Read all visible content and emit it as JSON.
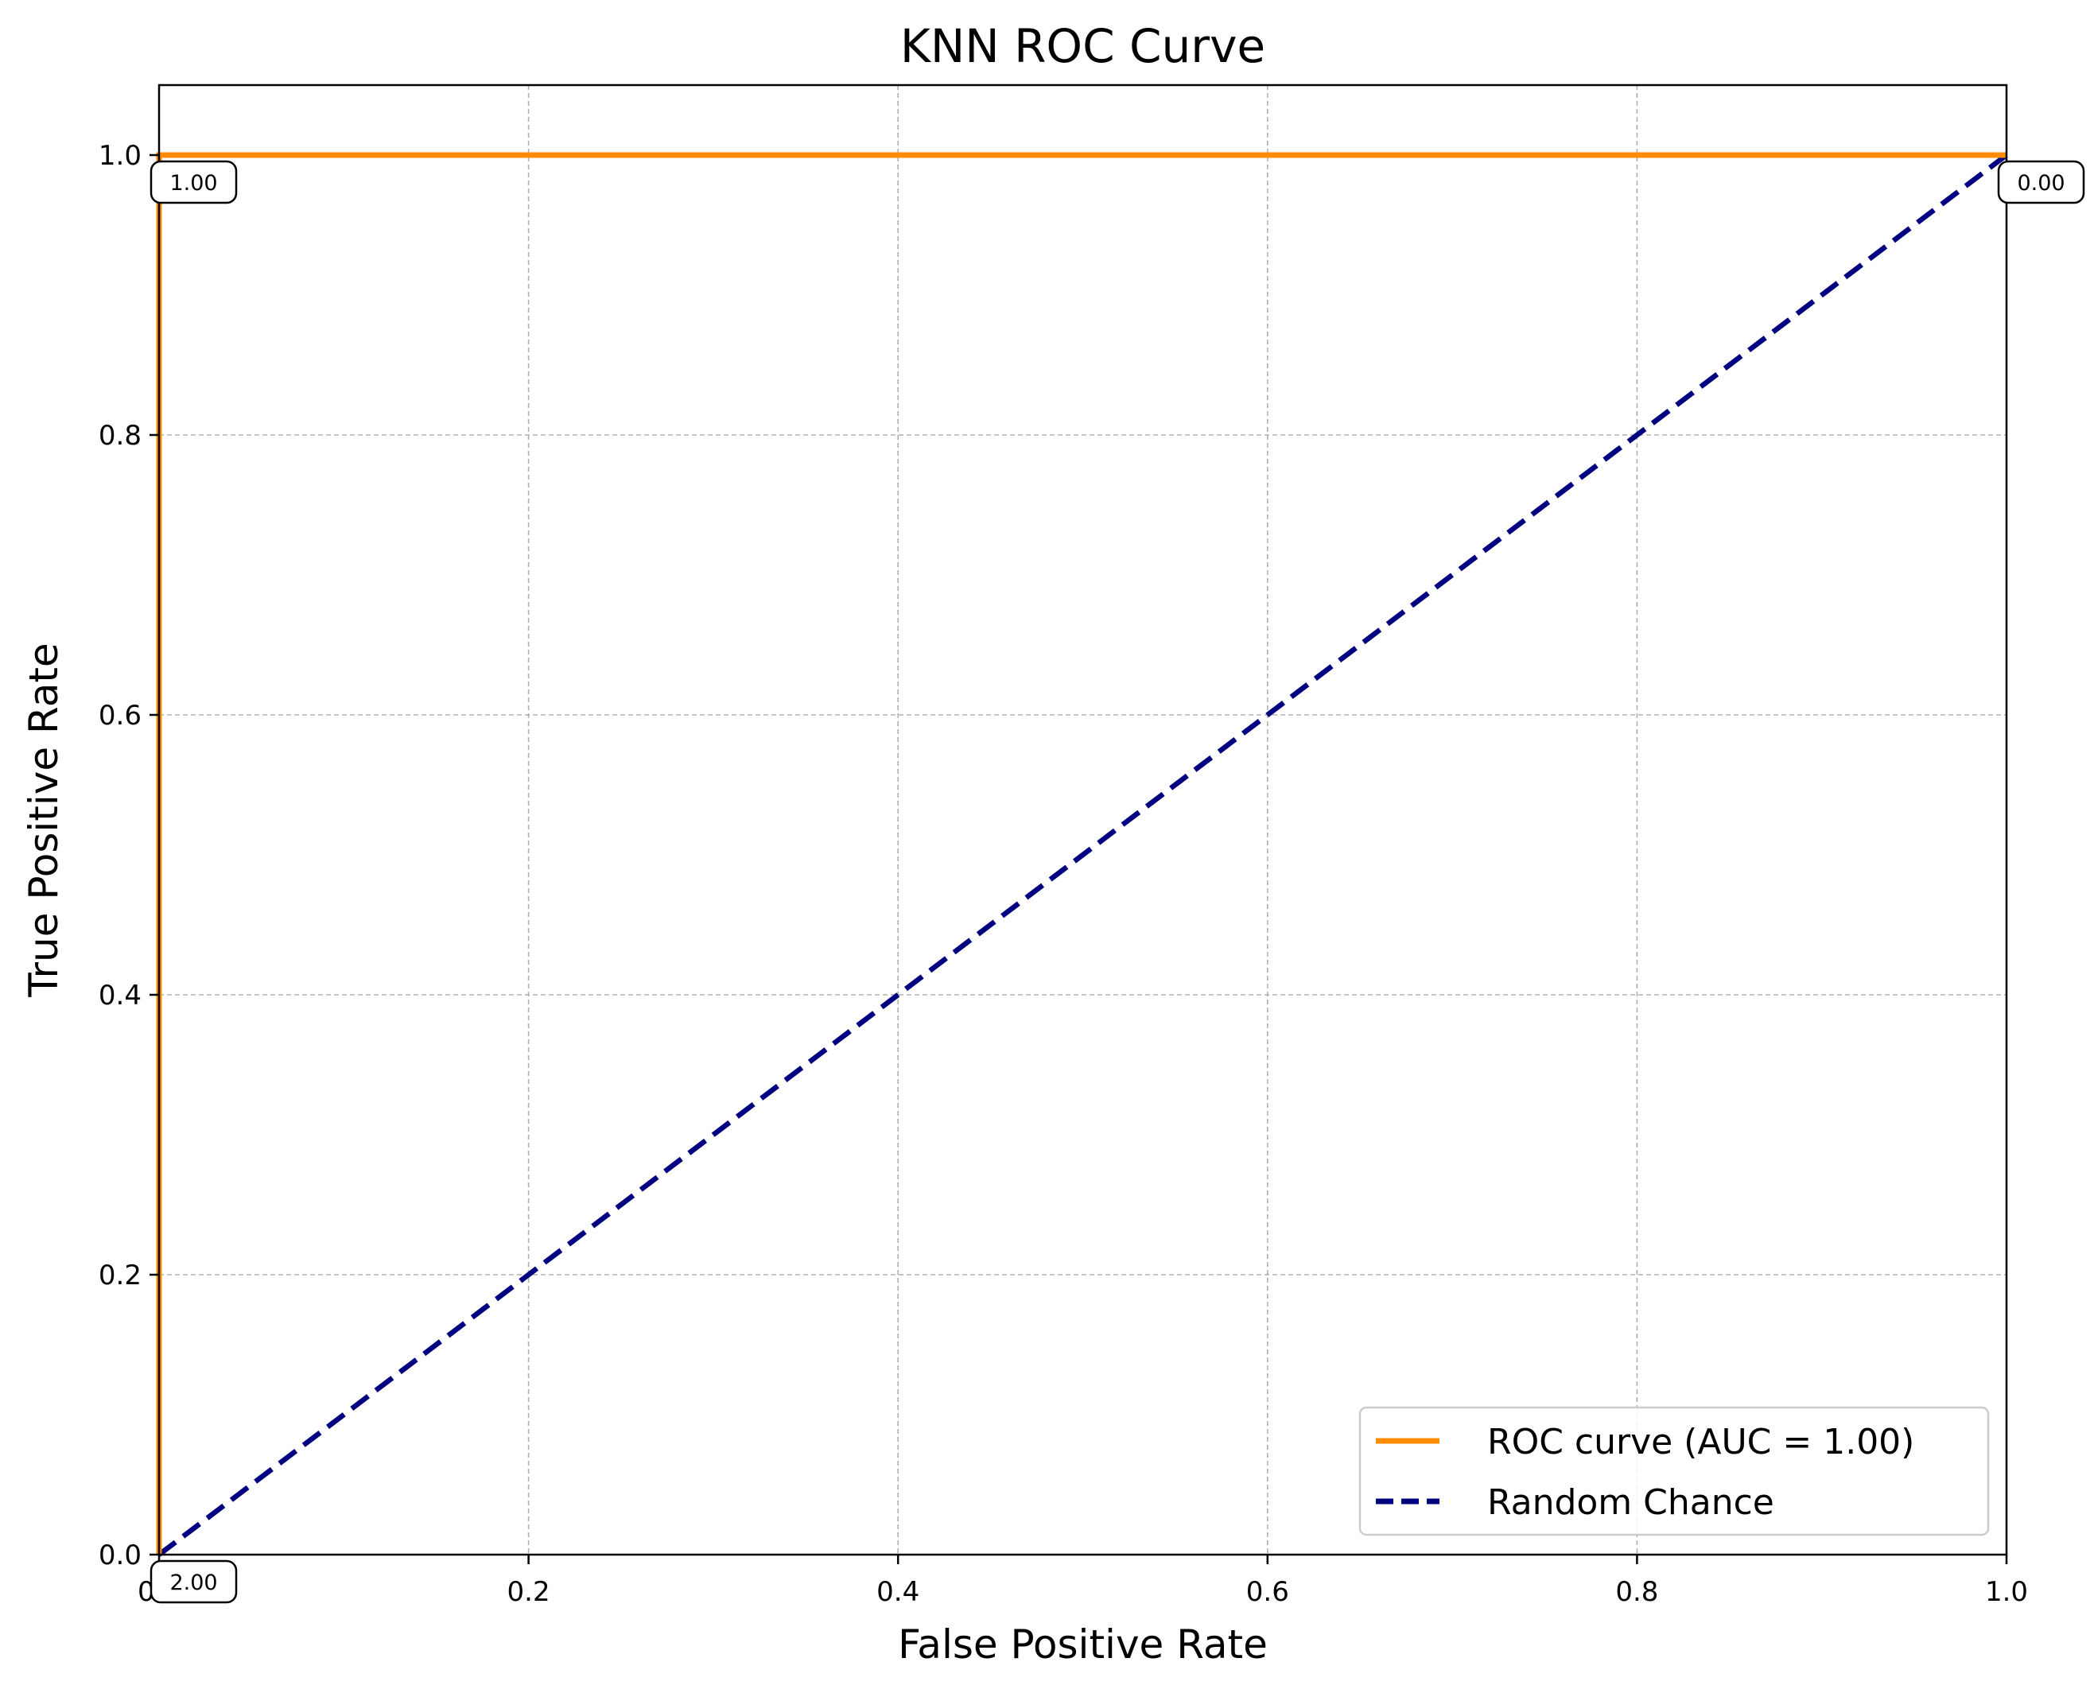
{
  "chart_data": {
    "type": "line",
    "title": "KNN ROC Curve",
    "xlabel": "False Positive Rate",
    "ylabel": "True Positive Rate",
    "xlim": [
      0.0,
      1.0
    ],
    "ylim": [
      0.0,
      1.05
    ],
    "xticks": [
      0.0,
      0.2,
      0.4,
      0.6,
      0.8,
      1.0
    ],
    "xtick_labels": [
      "0.0",
      "0.2",
      "0.4",
      "0.6",
      "0.8",
      "1.0"
    ],
    "yticks": [
      0.0,
      0.2,
      0.4,
      0.6,
      0.8,
      1.0
    ],
    "ytick_labels": [
      "0.0",
      "0.2",
      "0.4",
      "0.6",
      "0.8",
      "1.0"
    ],
    "grid": true,
    "legend_position": "lower-right",
    "series": [
      {
        "name": "ROC curve (AUC = 1.00)",
        "color": "#ff8c00",
        "style": "solid",
        "x": [
          0.0,
          0.0,
          1.0
        ],
        "y": [
          0.0,
          1.0,
          1.0
        ]
      },
      {
        "name": "Random Chance",
        "color": "#000080",
        "style": "dashed",
        "x": [
          0.0,
          1.0
        ],
        "y": [
          0.0,
          1.0
        ]
      }
    ],
    "threshold_annotations": [
      {
        "x": 0.0,
        "y": 0.0,
        "label": "2.00"
      },
      {
        "x": 0.0,
        "y": 1.0,
        "label": "1.00"
      },
      {
        "x": 1.0,
        "y": 1.0,
        "label": "0.00"
      }
    ]
  }
}
